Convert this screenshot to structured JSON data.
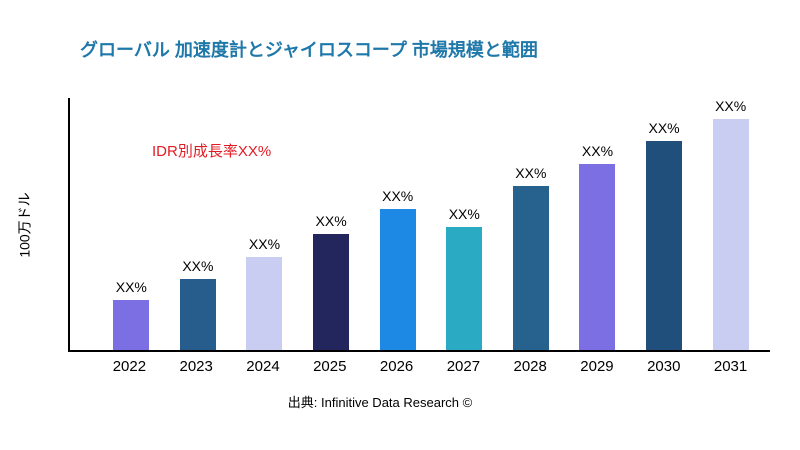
{
  "chart": {
    "title": "グローバル 加速度計とジャイロスコープ 市場規模と範囲",
    "title_color": "#1F78AA",
    "annotation": "IDR別成長率XX%",
    "annotation_color": "#E31B23",
    "ylabel": "100万ドル",
    "source": "出典: Infinitive Data Research ©"
  },
  "chart_data": {
    "type": "bar",
    "title": "グローバル 加速度計とジャイロスコープ 市場規模と範囲",
    "xlabel": "",
    "ylabel": "100万ドル",
    "categories": [
      "2022",
      "2023",
      "2024",
      "2025",
      "2026",
      "2027",
      "2028",
      "2029",
      "2030",
      "2031"
    ],
    "values": [
      20,
      28,
      37,
      46,
      56,
      49,
      65,
      74,
      83,
      93
    ],
    "value_labels": [
      "XX%",
      "XX%",
      "XX%",
      "XX%",
      "XX%",
      "XX%",
      "XX%",
      "XX%",
      "XX%",
      "XX%"
    ],
    "bar_colors": [
      "#7C6FE4",
      "#275D8C",
      "#C9CDF2",
      "#23265C",
      "#1E88E5",
      "#2BAAC4",
      "#27628F",
      "#7C6FE4",
      "#1F4F7A",
      "#C9CDF2"
    ],
    "ylim": [
      0,
      100
    ],
    "values_note": "Bar heights are relative estimates; chart displays XX% placeholders instead of numbers",
    "grid": false,
    "legend": false,
    "annotation": "IDR別成長率XX%",
    "source": "出典: Infinitive Data Research ©"
  }
}
